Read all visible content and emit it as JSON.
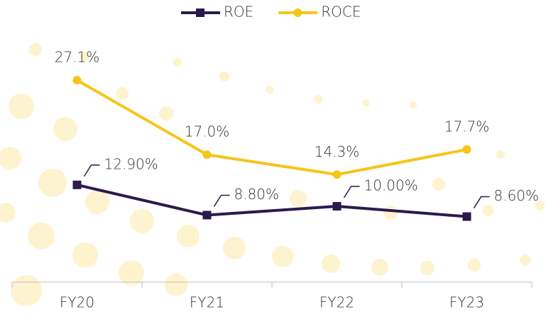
{
  "chart_data": {
    "type": "line",
    "categories": [
      "FY20",
      "FY21",
      "FY22",
      "FY23"
    ],
    "series": [
      {
        "name": "ROE",
        "color": "#2b1a4d",
        "marker": "square",
        "values": [
          12.9,
          8.8,
          10.0,
          8.6
        ],
        "value_labels": [
          "12.90%",
          "8.80%",
          "10.00%",
          "8.60%"
        ]
      },
      {
        "name": "ROCE",
        "color": "#f5c518",
        "marker": "circle",
        "values": [
          27.1,
          17.0,
          14.3,
          17.7
        ],
        "value_labels": [
          "27.1%",
          "17.0%",
          "14.3%",
          "17.7%"
        ]
      }
    ],
    "ylim": [
      0,
      35
    ],
    "legend": "top"
  }
}
